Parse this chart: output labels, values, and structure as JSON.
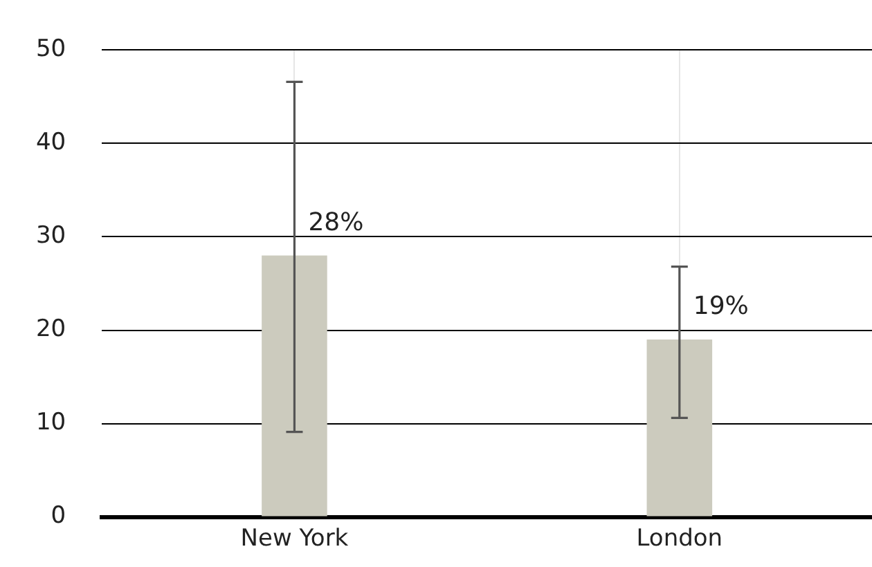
{
  "chart_data": {
    "type": "bar",
    "categories": [
      "New York",
      "London"
    ],
    "values": [
      28,
      19
    ],
    "errors": [
      [
        9.1,
        46.6
      ],
      [
        10.6,
        26.8
      ]
    ],
    "value_labels": [
      "28%",
      "19%"
    ],
    "color": "#cccbbe",
    "ylim": [
      0,
      50
    ],
    "yticks": [
      0,
      10,
      20,
      30,
      40,
      50
    ],
    "grid": true
  }
}
